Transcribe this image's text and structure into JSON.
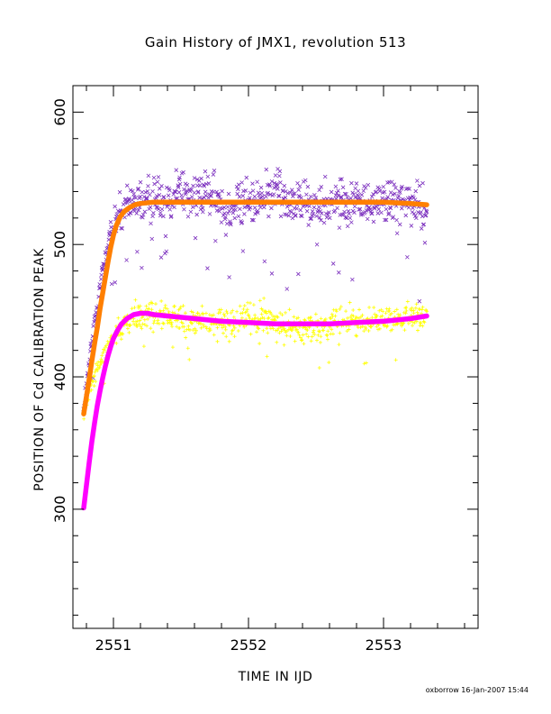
{
  "chart_data": {
    "type": "scatter",
    "title": "Gain History of JMX1, revolution 513",
    "xlabel": "TIME IN IJD",
    "ylabel": "POSITION OF Cd CALIBRATION PEAK",
    "footer": "oxborrow 16-Jan-2007 15:44",
    "xlim": [
      2550.7,
      2553.7
    ],
    "ylim": [
      210,
      620
    ],
    "xticks": [
      2551,
      2552,
      2553
    ],
    "xtick_labels": [
      "2551",
      "2552",
      "2553"
    ],
    "yticks": [
      300,
      400,
      500,
      600
    ],
    "ytick_labels": [
      "300",
      "400",
      "500",
      "600"
    ],
    "grid": false,
    "legend": "none",
    "series": [
      {
        "marker": "x",
        "color": "#7b2fbe",
        "spread": 12,
        "x": [
          2550.78,
          2550.82,
          2550.86,
          2550.9,
          2550.94,
          2550.98,
          2551.02,
          2551.06,
          2551.1,
          2551.15,
          2551.2,
          2551.3,
          2551.4,
          2551.5,
          2551.6,
          2551.7,
          2551.8,
          2551.9,
          2552.0,
          2552.1,
          2552.2,
          2552.3,
          2552.4,
          2552.5,
          2552.6,
          2552.7,
          2552.8,
          2552.9,
          2553.0,
          2553.1,
          2553.2,
          2553.32
        ],
        "y": [
          375,
          410,
          440,
          468,
          492,
          508,
          518,
          524,
          528,
          531,
          533,
          535,
          536,
          538,
          540,
          537,
          530,
          528,
          533,
          535,
          541,
          535,
          532,
          530,
          533,
          531,
          534,
          530,
          533,
          530,
          531,
          524
        ]
      },
      {
        "marker": "+",
        "color": "#ffff00",
        "spread": 8,
        "x": [
          2550.78,
          2550.82,
          2550.86,
          2550.9,
          2550.94,
          2550.98,
          2551.02,
          2551.06,
          2551.1,
          2551.15,
          2551.2,
          2551.3,
          2551.4,
          2551.5,
          2551.6,
          2551.7,
          2551.8,
          2551.9,
          2552.0,
          2552.1,
          2552.2,
          2552.3,
          2552.4,
          2552.5,
          2552.6,
          2552.7,
          2552.8,
          2552.9,
          2553.0,
          2553.1,
          2553.2,
          2553.32
        ],
        "y": [
          370,
          390,
          400,
          410,
          418,
          426,
          433,
          438,
          442,
          445,
          446,
          447,
          446,
          445,
          442,
          441,
          443,
          444,
          445,
          444,
          441,
          439,
          436,
          438,
          439,
          441,
          442,
          441,
          443,
          444,
          445,
          444
        ]
      },
      {
        "marker": "curve",
        "color": "#ff7f00",
        "x": [
          2550.78,
          2550.8,
          2550.82,
          2550.84,
          2550.86,
          2550.88,
          2550.9,
          2550.92,
          2550.94,
          2550.96,
          2550.98,
          2551.0,
          2551.02,
          2551.05,
          2551.08,
          2551.12,
          2551.16,
          2551.2,
          2551.3,
          2551.4,
          2551.6,
          2551.8,
          2552.0,
          2552.2,
          2552.4,
          2552.6,
          2552.8,
          2553.0,
          2553.2,
          2553.32
        ],
        "y": [
          372,
          385,
          398,
          412,
          425,
          437,
          451,
          463,
          475,
          487,
          498,
          507,
          514,
          521,
          525,
          528,
          530,
          531,
          532,
          532,
          532,
          532,
          532,
          532,
          532,
          532,
          532,
          532,
          531,
          530
        ]
      },
      {
        "marker": "curve",
        "color": "#ff00ff",
        "x": [
          2550.78,
          2550.8,
          2550.82,
          2550.84,
          2550.86,
          2550.88,
          2550.9,
          2550.92,
          2550.94,
          2550.96,
          2550.98,
          2551.0,
          2551.03,
          2551.06,
          2551.1,
          2551.15,
          2551.2,
          2551.25,
          2551.3,
          2551.4,
          2551.6,
          2551.8,
          2552.0,
          2552.2,
          2552.4,
          2552.6,
          2552.8,
          2553.0,
          2553.2,
          2553.32
        ],
        "y": [
          301,
          318,
          335,
          351,
          365,
          378,
          389,
          399,
          408,
          416,
          423,
          429,
          435,
          440,
          444,
          447,
          448,
          448,
          447,
          446,
          444,
          442,
          441,
          440,
          440,
          440,
          441,
          442,
          444,
          446
        ]
      }
    ]
  }
}
